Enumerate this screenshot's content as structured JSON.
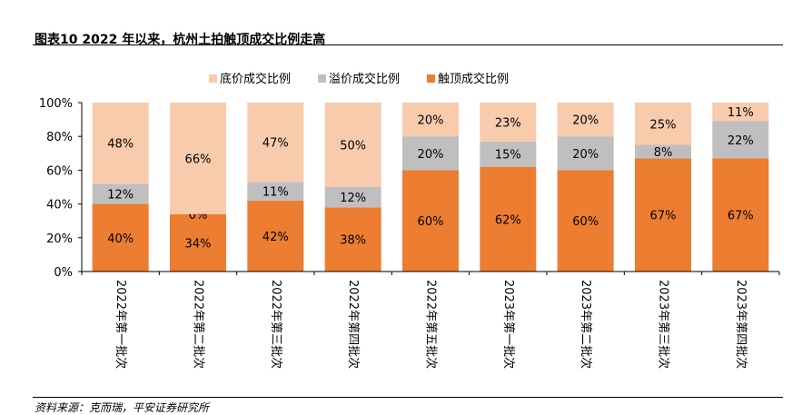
{
  "figure": {
    "title": "图表10    2022 年以来，杭州土拍触顶成交比例走高",
    "source": "资料来源：克而瑞，平安证券研究所"
  },
  "chart_data": {
    "type": "bar",
    "stacked": true,
    "categories": [
      "2022年第一批次",
      "2022年第二批次",
      "2022年第三批次",
      "2022年第四批次",
      "2022年第五批次",
      "2023年第一批次",
      "2023年第二批次",
      "2023年第三批次",
      "2023年第四批次"
    ],
    "series": [
      {
        "name": "触顶成交比例",
        "color": "#ED7D31",
        "values": [
          40,
          34,
          42,
          38,
          60,
          62,
          60,
          67,
          67
        ],
        "labels": [
          "40%",
          "34%",
          "42%",
          "38%",
          "60%",
          "62%",
          "60%",
          "67%",
          "67%"
        ]
      },
      {
        "name": "溢价成交比例",
        "color": "#BFBFBF",
        "values": [
          12,
          0,
          11,
          12,
          20,
          15,
          20,
          8,
          22
        ],
        "labels": [
          "12%",
          "0%",
          "11%",
          "12%",
          "20%",
          "15%",
          "20%",
          "8%",
          "22%"
        ]
      },
      {
        "name": "底价成交比例",
        "color": "#F8CBAD",
        "values": [
          48,
          66,
          47,
          50,
          20,
          23,
          20,
          25,
          11
        ],
        "labels": [
          "48%",
          "66%",
          "47%",
          "50%",
          "20%",
          "23%",
          "20%",
          "25%",
          "11%"
        ]
      }
    ],
    "legend_order": [
      "底价成交比例",
      "溢价成交比例",
      "触顶成交比例"
    ],
    "yticks": [
      "0%",
      "20%",
      "40%",
      "60%",
      "80%",
      "100%"
    ],
    "ylim": [
      0,
      100
    ],
    "xlabel": "",
    "ylabel": "",
    "grid": false,
    "legend_position": "top-center"
  }
}
